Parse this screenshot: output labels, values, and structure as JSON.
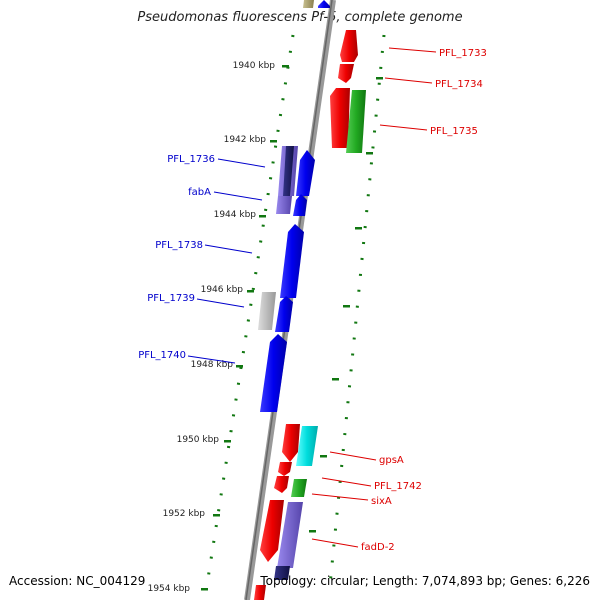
{
  "title": "Pseudomonas fluorescens Pf-5, complete genome",
  "accession": "Accession: NC_004129",
  "topology": "Topology: circular; Length: 7,074,893 bp; Genes: 6,226",
  "colors": {
    "forward_gene": "#0000ee",
    "reverse_gene": "#ee0000",
    "rna_green": "#22aa22",
    "cyan_gene": "#00dddd",
    "purple_gene": "#7766cc",
    "gray_gene": "#bbbbbb",
    "dark_navy_gene": "#1a1a5a",
    "olive_gene": "#aaa070",
    "tick_green": "#117711",
    "backbone": "#888888"
  },
  "kbp_labels": [
    {
      "text": "1940 kbp",
      "kbp": 1940
    },
    {
      "text": "1942 kbp",
      "kbp": 1942
    },
    {
      "text": "1944 kbp",
      "kbp": 1944
    },
    {
      "text": "1946 kbp",
      "kbp": 1946
    },
    {
      "text": "1948 kbp",
      "kbp": 1948
    },
    {
      "text": "1950 kbp",
      "kbp": 1950
    },
    {
      "text": "1952 kbp",
      "kbp": 1952
    },
    {
      "text": "1954 kbp",
      "kbp": 1954
    }
  ],
  "forward_labels": [
    "PFL_1736",
    "fabA",
    "PFL_1738",
    "PFL_1739",
    "PFL_1740"
  ],
  "reverse_labels": [
    "PFL_1733",
    "PFL_1734",
    "PFL_1735",
    "gpsA",
    "PFL_1742",
    "sixA",
    "fadD-2"
  ]
}
